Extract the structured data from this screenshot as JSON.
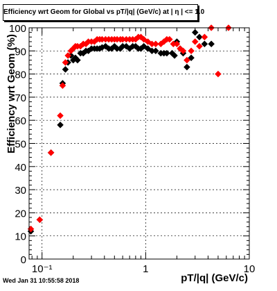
{
  "footer": {
    "timestamp": "Wed Jan 31 10:55:58 2018"
  },
  "chart_data": {
    "type": "scatter",
    "title": "Efficiency wrt Geom for Global vs pT/|q| (GeV/c) at | η | <= 1.0",
    "xlabel": "pT/|q| (GeV/c)",
    "ylabel": "Efficiency wrt Geom (%)",
    "xscale": "log",
    "xlim": [
      0.075,
      10
    ],
    "ylim": [
      0,
      100
    ],
    "grid": true,
    "x_ticks": [
      {
        "v": 0.1,
        "label": "10⁻¹"
      },
      {
        "v": 1,
        "label": "1"
      },
      {
        "v": 10,
        "label": "10"
      }
    ],
    "y_ticks": [
      0,
      10,
      20,
      30,
      40,
      50,
      60,
      70,
      80,
      90,
      100
    ],
    "series": [
      {
        "color": "#000000",
        "marker": "diamond",
        "points": [
          [
            0.078,
            12
          ],
          [
            0.095,
            17
          ],
          [
            0.122,
            46
          ],
          [
            0.15,
            58
          ],
          [
            0.158,
            76
          ],
          [
            0.168,
            82
          ],
          [
            0.178,
            85
          ],
          [
            0.19,
            88
          ],
          [
            0.2,
            86
          ],
          [
            0.21,
            87
          ],
          [
            0.22,
            86
          ],
          [
            0.235,
            89
          ],
          [
            0.25,
            89
          ],
          [
            0.265,
            90
          ],
          [
            0.28,
            90
          ],
          [
            0.3,
            91
          ],
          [
            0.32,
            91
          ],
          [
            0.34,
            91
          ],
          [
            0.36,
            91
          ],
          [
            0.38,
            91.5
          ],
          [
            0.41,
            92
          ],
          [
            0.44,
            91
          ],
          [
            0.47,
            91
          ],
          [
            0.5,
            92
          ],
          [
            0.53,
            91
          ],
          [
            0.57,
            91
          ],
          [
            0.6,
            92
          ],
          [
            0.65,
            92
          ],
          [
            0.7,
            91
          ],
          [
            0.75,
            92
          ],
          [
            0.8,
            92
          ],
          [
            0.85,
            91
          ],
          [
            0.9,
            91
          ],
          [
            0.96,
            92
          ],
          [
            1.05,
            91
          ],
          [
            1.15,
            90
          ],
          [
            1.25,
            90
          ],
          [
            1.4,
            89
          ],
          [
            1.5,
            89
          ],
          [
            1.6,
            89
          ],
          [
            1.8,
            89
          ],
          [
            1.9,
            88
          ],
          [
            2.0,
            94
          ],
          [
            2.15,
            91
          ],
          [
            2.3,
            89
          ],
          [
            2.5,
            83
          ],
          [
            2.75,
            87
          ],
          [
            3.0,
            98
          ],
          [
            3.3,
            96
          ],
          [
            3.7,
            93
          ],
          [
            4.3,
            93
          ]
        ]
      },
      {
        "color": "#ff0000",
        "marker": "diamond",
        "points": [
          [
            0.078,
            13
          ],
          [
            0.095,
            17
          ],
          [
            0.122,
            46
          ],
          [
            0.15,
            62
          ],
          [
            0.158,
            75
          ],
          [
            0.168,
            85
          ],
          [
            0.178,
            88
          ],
          [
            0.19,
            90
          ],
          [
            0.2,
            91
          ],
          [
            0.21,
            92
          ],
          [
            0.22,
            92
          ],
          [
            0.235,
            92
          ],
          [
            0.25,
            93
          ],
          [
            0.265,
            93
          ],
          [
            0.28,
            94
          ],
          [
            0.3,
            94
          ],
          [
            0.32,
            94
          ],
          [
            0.34,
            95
          ],
          [
            0.36,
            95
          ],
          [
            0.38,
            95
          ],
          [
            0.41,
            95
          ],
          [
            0.44,
            95
          ],
          [
            0.47,
            95
          ],
          [
            0.5,
            95
          ],
          [
            0.53,
            95
          ],
          [
            0.57,
            95
          ],
          [
            0.6,
            95
          ],
          [
            0.65,
            95
          ],
          [
            0.7,
            95
          ],
          [
            0.75,
            95
          ],
          [
            0.8,
            95
          ],
          [
            0.85,
            96
          ],
          [
            0.9,
            96
          ],
          [
            0.96,
            95
          ],
          [
            1.05,
            94
          ],
          [
            1.15,
            93
          ],
          [
            1.25,
            93
          ],
          [
            1.4,
            93
          ],
          [
            1.5,
            94
          ],
          [
            1.6,
            95
          ],
          [
            1.7,
            95
          ],
          [
            1.85,
            93
          ],
          [
            2.0,
            93
          ],
          [
            2.15,
            91
          ],
          [
            2.3,
            90
          ],
          [
            2.5,
            86
          ],
          [
            2.75,
            90
          ],
          [
            3.0,
            94
          ],
          [
            3.3,
            92
          ],
          [
            3.7,
            96
          ],
          [
            4.3,
            100
          ],
          [
            5.0,
            80
          ],
          [
            6.3,
            100
          ]
        ]
      }
    ]
  }
}
